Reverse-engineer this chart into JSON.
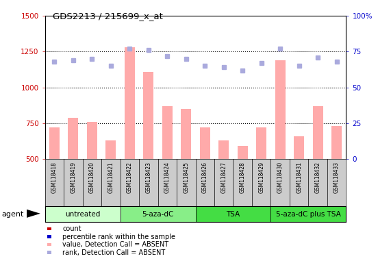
{
  "title": "GDS2213 / 215699_x_at",
  "samples": [
    "GSM118418",
    "GSM118419",
    "GSM118420",
    "GSM118421",
    "GSM118422",
    "GSM118423",
    "GSM118424",
    "GSM118425",
    "GSM118426",
    "GSM118427",
    "GSM118428",
    "GSM118429",
    "GSM118430",
    "GSM118431",
    "GSM118432",
    "GSM118433"
  ],
  "bar_values": [
    720,
    790,
    760,
    630,
    1280,
    1110,
    870,
    850,
    720,
    630,
    590,
    720,
    1190,
    660,
    870,
    730
  ],
  "dot_values_pct": [
    68,
    69,
    70,
    65,
    77,
    76,
    72,
    70,
    65,
    64,
    62,
    67,
    77,
    65,
    71,
    68
  ],
  "bar_color": "#ffaaaa",
  "dot_color": "#aaaadd",
  "ylim_left": [
    500,
    1500
  ],
  "ylim_right": [
    0,
    100
  ],
  "yticks_left": [
    500,
    750,
    1000,
    1250,
    1500
  ],
  "yticks_right": [
    0,
    25,
    50,
    75,
    100
  ],
  "ytick_labels_right": [
    "0",
    "25",
    "50",
    "75",
    "100%"
  ],
  "ytick_labels_left": [
    "500",
    "750",
    "1000",
    "1250",
    "1500"
  ],
  "gridlines": [
    750,
    1000,
    1250
  ],
  "groups": [
    {
      "label": "untreated",
      "start": 0,
      "end": 4,
      "color": "#ccffcc"
    },
    {
      "label": "5-aza-dC",
      "start": 4,
      "end": 8,
      "color": "#88ee88"
    },
    {
      "label": "TSA",
      "start": 8,
      "end": 12,
      "color": "#44dd44"
    },
    {
      "label": "5-aza-dC plus TSA",
      "start": 12,
      "end": 16,
      "color": "#44dd44"
    }
  ],
  "legend_items": [
    {
      "label": "count",
      "color": "#cc0000"
    },
    {
      "label": "percentile rank within the sample",
      "color": "#0000cc"
    },
    {
      "label": "value, Detection Call = ABSENT",
      "color": "#ffaaaa"
    },
    {
      "label": "rank, Detection Call = ABSENT",
      "color": "#aaaadd"
    }
  ],
  "agent_label": "agent",
  "background_color": "#ffffff",
  "tick_color_left": "#cc0000",
  "tick_color_right": "#0000cc"
}
